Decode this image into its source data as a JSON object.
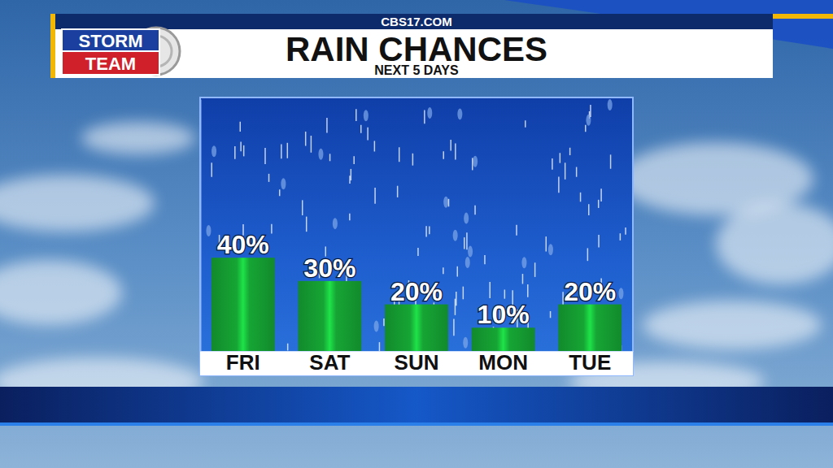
{
  "chart_data": {
    "type": "bar",
    "title": "RAIN CHANCES",
    "subtitle": "NEXT 5 DAYS",
    "annotations": [
      "CBS17.COM",
      "STORM",
      "TEAM"
    ],
    "categories": [
      "FRI",
      "SAT",
      "SUN",
      "MON",
      "TUE"
    ],
    "values": [
      40,
      30,
      20,
      10,
      20
    ],
    "value_labels": [
      "40%",
      "30%",
      "20%",
      "10%",
      "20%"
    ],
    "color": "#16a534",
    "ylim": [
      0,
      108
    ],
    "data_labels": true,
    "tick_labels": "x",
    "grid": false
  }
}
